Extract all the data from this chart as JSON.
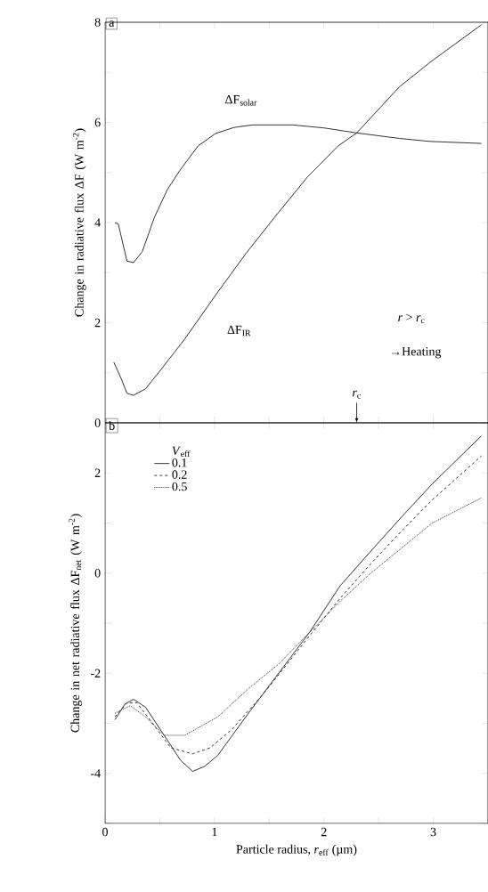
{
  "chart_data": [
    {
      "type": "line",
      "title": "a",
      "ylabel": "Change in radiative flux ΔF (W m$^{-2}$)",
      "xlim": [
        0,
        3.5
      ],
      "ylim": [
        0,
        8
      ],
      "xticks": [
        0,
        {
          "value": 0.5,
          "label": null
        },
        1,
        {
          "value": 1.5,
          "label": null
        },
        2,
        {
          "value": 2.5,
          "label": null
        },
        3
      ],
      "yticks": [
        0,
        {
          "value": 1,
          "label": null
        },
        2,
        {
          "value": 3,
          "label": null
        },
        4,
        {
          "value": 5,
          "label": null
        },
        6,
        {
          "value": 7,
          "label": null
        },
        8
      ],
      "tick_labels": "y",
      "marker": "none",
      "series": [
        {
          "color": "#333333",
          "line_style": "solid",
          "x": [
            0.09,
            0.12,
            0.2,
            0.26,
            0.34,
            0.45,
            0.57,
            0.68,
            0.85,
            1.01,
            1.18,
            1.35,
            1.71,
            2.0,
            2.3,
            2.69,
            2.97,
            3.44
          ],
          "values": [
            3.99,
            3.98,
            3.23,
            3.2,
            3.42,
            4.1,
            4.66,
            5.03,
            5.53,
            5.78,
            5.9,
            5.95,
            5.95,
            5.89,
            5.79,
            5.68,
            5.62,
            5.58
          ]
        },
        {
          "color": "#333333",
          "line_style": "solid",
          "x": [
            0.08,
            0.15,
            0.2,
            0.26,
            0.37,
            0.51,
            0.73,
            1.01,
            1.29,
            1.57,
            1.85,
            2.13,
            2.3,
            2.69,
            2.97,
            3.44
          ],
          "values": [
            1.21,
            0.87,
            0.59,
            0.55,
            0.68,
            1.06,
            1.68,
            2.55,
            3.39,
            4.16,
            4.91,
            5.53,
            5.79,
            6.71,
            7.2,
            7.95
          ]
        }
      ],
      "ref_lines": [
        {
          "axis": "x",
          "value": 2.3,
          "label": "*r*$_{c}$"
        }
      ],
      "annotations": [
        "ΔF$_{solar}$",
        "ΔF$_{IR}$",
        "*r* > *r*$_{c}$",
        "→Heating"
      ]
    },
    {
      "type": "line",
      "title": "b",
      "xlabel": "Particle radius, *r*$_{eff}$ (µm)",
      "ylabel": "Change in net radiative flux ΔF$_{net}$ (W m$^{-2}$)",
      "legend_title": "*V*$_{eff}$",
      "legend": "top left",
      "xlim": [
        0,
        3.5
      ],
      "ylim": [
        -5,
        3
      ],
      "xticks": [
        0,
        {
          "value": 0.5,
          "label": null
        },
        1,
        {
          "value": 1.5,
          "label": null
        },
        2,
        {
          "value": 2.5,
          "label": null
        },
        3
      ],
      "yticks": [
        {
          "value": -5,
          "label": null
        },
        -4,
        {
          "value": -3,
          "label": null
        },
        -2,
        {
          "value": -1,
          "label": null
        },
        0,
        {
          "value": 1,
          "label": null
        },
        2
      ],
      "marker": "none",
      "series": [
        {
          "name": "0.1",
          "color": "#333333",
          "line_style": "solid",
          "x": [
            0.09,
            0.18,
            0.26,
            0.37,
            0.54,
            0.69,
            0.8,
            0.91,
            1.03,
            1.31,
            1.59,
            1.87,
            2.15,
            2.43,
            2.71,
            2.99,
            3.44
          ],
          "values": [
            -2.93,
            -2.62,
            -2.52,
            -2.68,
            -3.24,
            -3.74,
            -3.96,
            -3.86,
            -3.64,
            -2.8,
            -1.99,
            -1.18,
            -0.25,
            0.44,
            1.12,
            1.78,
            2.74
          ]
        },
        {
          "name": "0.2",
          "color": "#333333",
          "line_style": "dashed",
          "x": [
            0.09,
            0.2,
            0.29,
            0.43,
            0.6,
            0.8,
            0.96,
            1.16,
            1.44,
            1.87,
            2.15,
            2.43,
            2.71,
            2.99,
            3.44
          ],
          "values": [
            -2.87,
            -2.59,
            -2.59,
            -2.99,
            -3.49,
            -3.61,
            -3.49,
            -3.12,
            -2.43,
            -1.25,
            -0.5,
            0.19,
            0.84,
            1.46,
            2.34
          ]
        },
        {
          "name": "0.5",
          "color": "#333333",
          "line_style": "dotted",
          "x": [
            0.09,
            0.23,
            0.37,
            0.54,
            0.73,
            1.03,
            1.31,
            1.59,
            1.87,
            2.15,
            2.43,
            2.71,
            2.99,
            3.44
          ],
          "values": [
            -2.8,
            -2.65,
            -2.87,
            -3.24,
            -3.24,
            -2.87,
            -2.31,
            -1.81,
            -1.18,
            -0.56,
            0.0,
            0.5,
            1.0,
            1.5
          ]
        }
      ]
    }
  ]
}
